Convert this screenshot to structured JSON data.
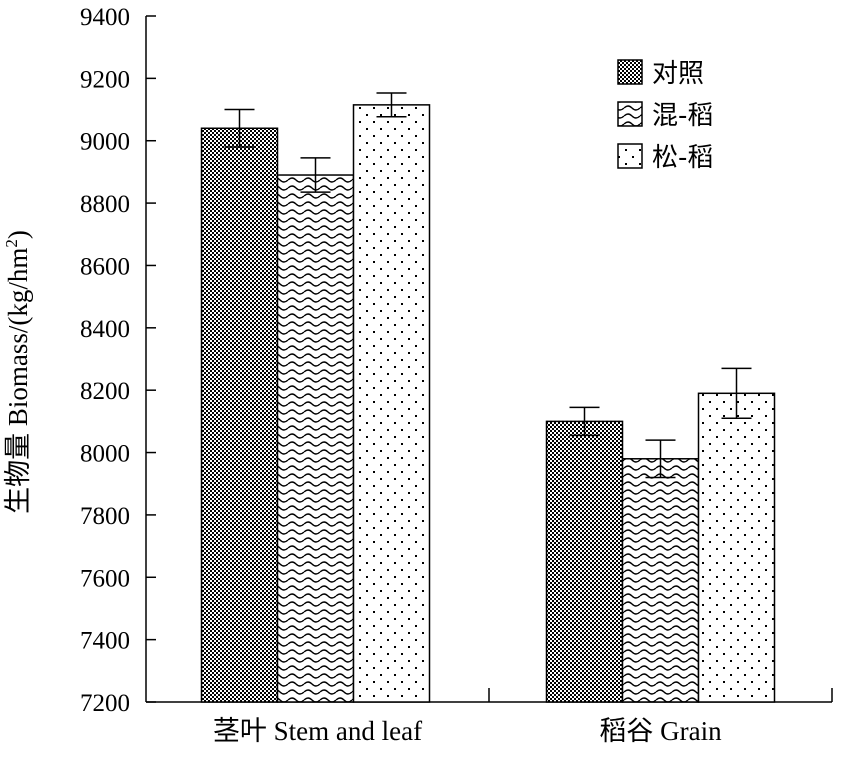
{
  "chart_data": {
    "type": "bar",
    "ylabel": "生物量 Biomass/(kg/hm",
    "ylabel_sup": "2",
    "ylabel_close": ")",
    "ylim": [
      7200,
      9400
    ],
    "y_ticks": [
      7200,
      7400,
      7600,
      7800,
      8000,
      8200,
      8400,
      8600,
      8800,
      9000,
      9200,
      9400
    ],
    "categories": [
      "茎叶 Stem and leaf",
      "稻谷 Grain"
    ],
    "series": [
      {
        "name": "对照",
        "pattern": "crosshatch",
        "values": [
          9040,
          8100
        ],
        "errors": [
          60,
          45
        ]
      },
      {
        "name": "混-稻",
        "pattern": "wave",
        "values": [
          8890,
          7980
        ],
        "errors": [
          55,
          60
        ]
      },
      {
        "name": "松-稻",
        "pattern": "dots",
        "values": [
          9115,
          8190
        ],
        "errors": [
          38,
          80
        ]
      }
    ],
    "legend_position": "top-right",
    "grid": false
  }
}
